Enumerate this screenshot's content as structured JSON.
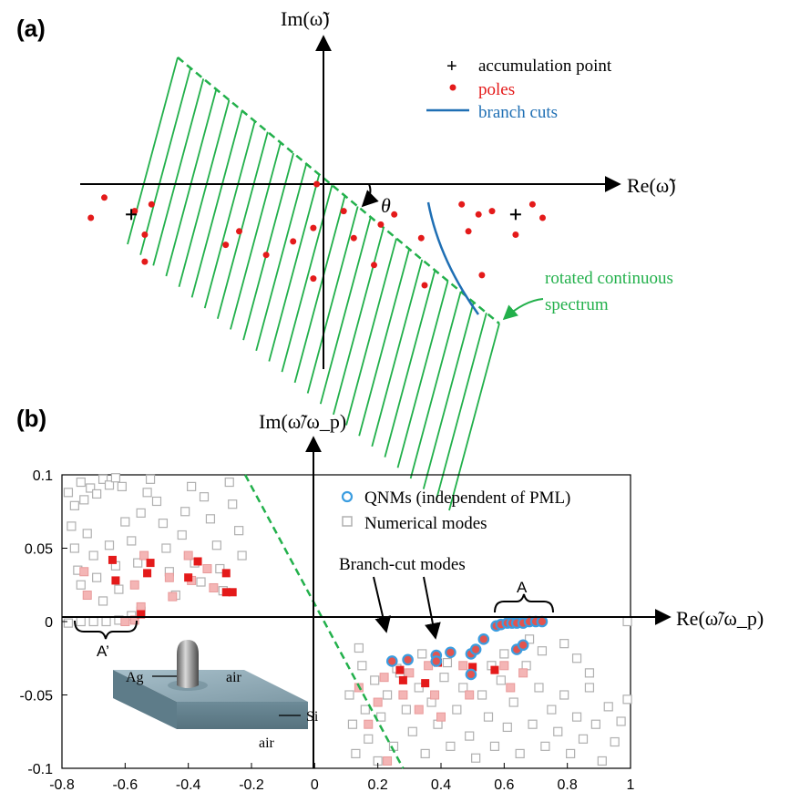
{
  "colors": {
    "green": "#22b04b",
    "red": "#e41a1a",
    "blue": "#1f6fb4",
    "qnm_ring": "#3b9de0",
    "numerical": "#b0b0b0",
    "pink_fill": "#f4b5b5",
    "inset_block": "#8fa8b3"
  },
  "chart_data": [
    {
      "panel": "(a)",
      "type": "scatter",
      "xlabel": "Re(ω̃)",
      "ylabel": "Im(ω̃)",
      "angle_label": "θ",
      "legend": {
        "accumulation": "accumulation point",
        "poles": "poles",
        "branch_cuts": "branch cuts"
      },
      "annotation": [
        "rotated continuous",
        "spectrum"
      ],
      "accumulation_points": [
        [
          -0.57,
          -0.09
        ],
        [
          0.57,
          -0.09
        ]
      ],
      "poles": [
        [
          -0.69,
          -0.1
        ],
        [
          -0.65,
          -0.04
        ],
        [
          -0.56,
          -0.08
        ],
        [
          -0.51,
          -0.06
        ],
        [
          -0.53,
          -0.15
        ],
        [
          -0.53,
          -0.23
        ],
        [
          -0.29,
          -0.18
        ],
        [
          -0.25,
          -0.14
        ],
        [
          -0.17,
          -0.21
        ],
        [
          -0.09,
          -0.17
        ],
        [
          -0.03,
          -0.13
        ],
        [
          -0.03,
          -0.28
        ],
        [
          -0.02,
          0.0
        ],
        [
          0.06,
          -0.08
        ],
        [
          0.09,
          -0.16
        ],
        [
          0.15,
          -0.24
        ],
        [
          0.17,
          -0.12
        ],
        [
          0.21,
          -0.09
        ],
        [
          0.29,
          -0.16
        ],
        [
          0.3,
          -0.3
        ],
        [
          0.41,
          -0.06
        ],
        [
          0.43,
          -0.14
        ],
        [
          0.46,
          -0.09
        ],
        [
          0.5,
          -0.08
        ],
        [
          0.57,
          -0.15
        ],
        [
          0.62,
          -0.06
        ],
        [
          0.65,
          -0.1
        ],
        [
          0.47,
          -0.27
        ]
      ]
    },
    {
      "panel": "(b)",
      "type": "scatter",
      "xlabel": "Re(ω̃/ω_p)",
      "ylabel": "Im(ω̃/ω_p)",
      "xlim": [
        -0.8,
        1.0
      ],
      "ylim": [
        -0.1,
        0.1
      ],
      "xticks": [
        "-0.8",
        "-0.6",
        "-0.4",
        "-0.2",
        "0",
        "0.2",
        "0.4",
        "0.6",
        "0.8",
        "1"
      ],
      "yticks": [
        "0.1",
        "0.05",
        "0",
        "-0.05",
        "-0.1"
      ],
      "legend": {
        "qnm": "QNMs (independent of PML)",
        "numerical": "Numerical modes"
      },
      "annotations": {
        "branch_cut": "Branch-cut modes",
        "A": "A",
        "A_prime": "A’"
      },
      "inset_labels": {
        "ag": "Ag",
        "air_top": "air",
        "si": "Si",
        "air_bottom": "air"
      },
      "green_line": [
        [
          -0.22,
          0.1
        ],
        [
          0.28,
          -0.1
        ]
      ],
      "qnms": [
        [
          0.245,
          -0.027
        ],
        [
          0.295,
          -0.026
        ],
        [
          0.385,
          -0.023
        ],
        [
          0.43,
          -0.021
        ],
        [
          0.495,
          -0.022
        ],
        [
          0.51,
          -0.019
        ],
        [
          0.535,
          -0.012
        ],
        [
          0.575,
          -0.003
        ],
        [
          0.59,
          -0.002
        ],
        [
          0.61,
          -0.001
        ],
        [
          0.625,
          -0.001
        ],
        [
          0.64,
          -0.001
        ],
        [
          0.66,
          -0.001
        ],
        [
          0.68,
          0.0
        ],
        [
          0.7,
          0.0
        ],
        [
          0.72,
          0.0
        ],
        [
          0.495,
          -0.036
        ],
        [
          0.64,
          -0.019
        ],
        [
          0.66,
          -0.016
        ],
        [
          0.385,
          -0.027
        ]
      ],
      "numerical_modes": [
        [
          -0.78,
          0.088
        ],
        [
          -0.76,
          0.079
        ],
        [
          -0.74,
          0.095
        ],
        [
          -0.73,
          0.083
        ],
        [
          -0.71,
          0.091
        ],
        [
          -0.69,
          0.087
        ],
        [
          -0.67,
          0.097
        ],
        [
          -0.65,
          0.093
        ],
        [
          -0.63,
          0.098
        ],
        [
          -0.61,
          0.092
        ],
        [
          -0.77,
          0.065
        ],
        [
          -0.76,
          0.05
        ],
        [
          -0.75,
          0.035
        ],
        [
          -0.74,
          0.025
        ],
        [
          -0.72,
          0.06
        ],
        [
          -0.7,
          0.045
        ],
        [
          -0.69,
          0.03
        ],
        [
          -0.67,
          0.014
        ],
        [
          -0.65,
          0.052
        ],
        [
          -0.63,
          0.038
        ],
        [
          -0.62,
          0.022
        ],
        [
          -0.6,
          0.068
        ],
        [
          -0.58,
          0.055
        ],
        [
          -0.56,
          0.04
        ],
        [
          -0.55,
          0.074
        ],
        [
          -0.53,
          0.088
        ],
        [
          -0.52,
          0.097
        ],
        [
          -0.5,
          0.082
        ],
        [
          -0.48,
          0.067
        ],
        [
          -0.47,
          0.05
        ],
        [
          -0.46,
          0.034
        ],
        [
          -0.44,
          0.018
        ],
        [
          -0.42,
          0.059
        ],
        [
          -0.41,
          0.075
        ],
        [
          -0.39,
          0.092
        ],
        [
          -0.38,
          0.04
        ],
        [
          -0.36,
          0.027
        ],
        [
          -0.35,
          0.085
        ],
        [
          -0.33,
          0.07
        ],
        [
          -0.31,
          0.052
        ],
        [
          -0.3,
          0.036
        ],
        [
          -0.29,
          0.021
        ],
        [
          -0.27,
          0.095
        ],
        [
          -0.26,
          0.08
        ],
        [
          -0.24,
          0.062
        ],
        [
          -0.23,
          0.045
        ],
        [
          -0.78,
          -0.001
        ],
        [
          -0.74,
          0.0
        ],
        [
          -0.7,
          0.0
        ],
        [
          -0.66,
          0.0
        ],
        [
          -0.62,
          0.001
        ],
        [
          -0.58,
          0.004
        ],
        [
          -0.55,
          0.007
        ],
        [
          0.11,
          -0.05
        ],
        [
          0.12,
          -0.07
        ],
        [
          0.13,
          -0.09
        ],
        [
          0.15,
          -0.03
        ],
        [
          0.16,
          -0.06
        ],
        [
          0.17,
          -0.08
        ],
        [
          0.19,
          -0.04
        ],
        [
          0.2,
          -0.095
        ],
        [
          0.21,
          -0.065
        ],
        [
          0.23,
          -0.05
        ],
        [
          0.25,
          -0.085
        ],
        [
          0.27,
          -0.035
        ],
        [
          0.29,
          -0.06
        ],
        [
          0.31,
          -0.075
        ],
        [
          0.33,
          -0.045
        ],
        [
          0.35,
          -0.09
        ],
        [
          0.37,
          -0.055
        ],
        [
          0.39,
          -0.07
        ],
        [
          0.41,
          -0.038
        ],
        [
          0.43,
          -0.085
        ],
        [
          0.45,
          -0.06
        ],
        [
          0.47,
          -0.045
        ],
        [
          0.49,
          -0.078
        ],
        [
          0.51,
          -0.093
        ],
        [
          0.53,
          -0.05
        ],
        [
          0.55,
          -0.065
        ],
        [
          0.57,
          -0.085
        ],
        [
          0.59,
          -0.04
        ],
        [
          0.61,
          -0.072
        ],
        [
          0.63,
          -0.055
        ],
        [
          0.65,
          -0.09
        ],
        [
          0.67,
          -0.03
        ],
        [
          0.69,
          -0.07
        ],
        [
          0.71,
          -0.045
        ],
        [
          0.73,
          -0.085
        ],
        [
          0.75,
          -0.06
        ],
        [
          0.77,
          -0.075
        ],
        [
          0.79,
          -0.05
        ],
        [
          0.81,
          -0.09
        ],
        [
          0.83,
          -0.065
        ],
        [
          0.85,
          -0.08
        ],
        [
          0.87,
          -0.045
        ],
        [
          0.89,
          -0.07
        ],
        [
          0.91,
          -0.095
        ],
        [
          0.93,
          -0.058
        ],
        [
          0.95,
          -0.082
        ],
        [
          0.97,
          -0.068
        ],
        [
          0.99,
          -0.053
        ],
        [
          0.79,
          -0.015
        ],
        [
          0.83,
          -0.025
        ],
        [
          0.87,
          -0.035
        ],
        [
          0.68,
          -0.012
        ],
        [
          0.72,
          -0.02
        ],
        [
          0.99,
          0.0
        ],
        [
          0.6,
          -0.022
        ],
        [
          0.56,
          -0.03
        ],
        [
          0.42,
          -0.028
        ],
        [
          0.34,
          -0.022
        ],
        [
          0.26,
          -0.032
        ],
        [
          0.14,
          -0.018
        ]
      ],
      "pink_modes": [
        [
          -0.73,
          0.034
        ],
        [
          -0.72,
          0.018
        ],
        [
          -0.57,
          0.025
        ],
        [
          -0.55,
          0.01
        ],
        [
          -0.54,
          0.045
        ],
        [
          -0.46,
          0.03
        ],
        [
          -0.45,
          0.017
        ],
        [
          -0.4,
          0.045
        ],
        [
          -0.39,
          0.028
        ],
        [
          -0.34,
          0.036
        ],
        [
          -0.32,
          0.023
        ],
        [
          -0.6,
          0.0
        ],
        [
          -0.57,
          0.001
        ],
        [
          0.14,
          -0.045
        ],
        [
          0.17,
          -0.07
        ],
        [
          0.2,
          -0.055
        ],
        [
          0.22,
          -0.038
        ],
        [
          0.28,
          -0.05
        ],
        [
          0.3,
          -0.035
        ],
        [
          0.33,
          -0.06
        ],
        [
          0.36,
          -0.03
        ],
        [
          0.38,
          -0.05
        ],
        [
          0.4,
          -0.065
        ],
        [
          0.47,
          -0.03
        ],
        [
          0.49,
          -0.05
        ],
        [
          0.6,
          -0.03
        ],
        [
          0.62,
          -0.045
        ],
        [
          0.66,
          -0.035
        ],
        [
          0.23,
          -0.095
        ]
      ],
      "red_modes": [
        [
          -0.64,
          0.042
        ],
        [
          -0.63,
          0.028
        ],
        [
          -0.53,
          0.033
        ],
        [
          -0.52,
          0.04
        ],
        [
          -0.4,
          0.03
        ],
        [
          -0.37,
          0.041
        ],
        [
          -0.28,
          0.033
        ],
        [
          -0.26,
          0.02
        ],
        [
          -0.55,
          0.005
        ],
        [
          0.27,
          -0.033
        ],
        [
          0.35,
          -0.042
        ],
        [
          0.39,
          -0.028
        ],
        [
          0.5,
          -0.031
        ],
        [
          0.57,
          -0.033
        ],
        [
          0.28,
          -0.04
        ],
        [
          -0.28,
          0.02
        ]
      ]
    }
  ]
}
